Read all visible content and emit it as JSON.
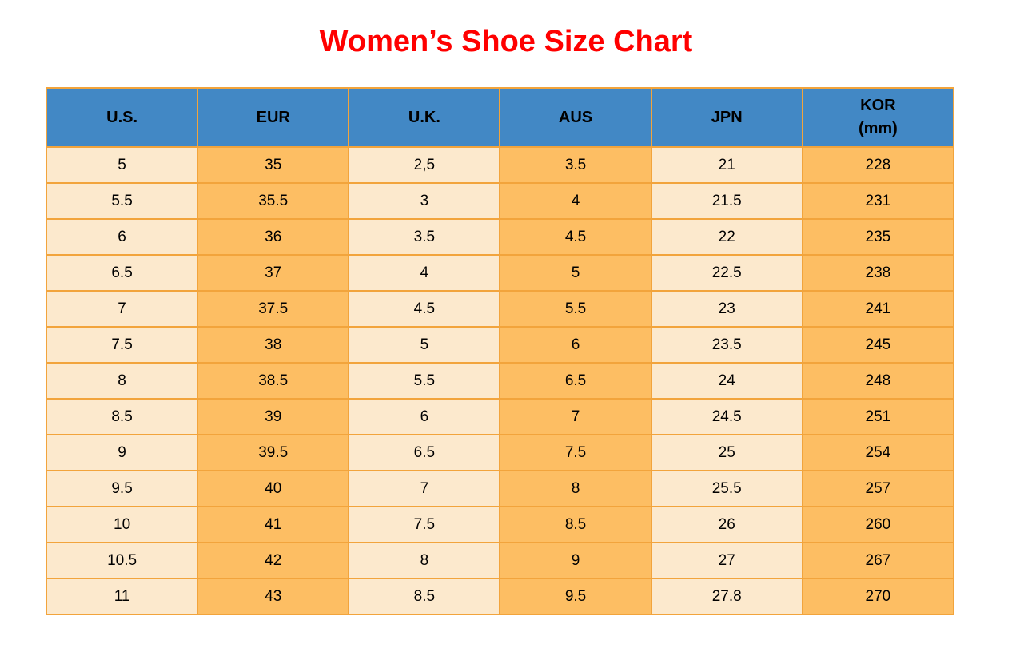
{
  "title": "Women’s Shoe Size Chart",
  "colors": {
    "title_red": "#FF0000",
    "header_blue": "#4288C5",
    "cell_cream": "#FCE9CD",
    "cell_orange": "#FDBE63",
    "border_orange": "#F2A43C",
    "text_black": "#000000"
  },
  "chart_data": {
    "type": "table",
    "title": "Women’s Shoe Size Chart",
    "columns": [
      "U.S.",
      "EUR",
      "U.K.",
      "AUS",
      "JPN",
      "KOR (mm)"
    ],
    "header_cells": [
      {
        "line1": "U.S.",
        "line2": ""
      },
      {
        "line1": "EUR",
        "line2": ""
      },
      {
        "line1": "U.K.",
        "line2": ""
      },
      {
        "line1": "AUS",
        "line2": ""
      },
      {
        "line1": "JPN",
        "line2": ""
      },
      {
        "line1": "KOR",
        "line2": "(mm)"
      }
    ],
    "column_fills": [
      "cream",
      "orange",
      "cream",
      "orange",
      "cream",
      "orange"
    ],
    "rows": [
      [
        "5",
        "35",
        "2,5",
        "3.5",
        "21",
        "228"
      ],
      [
        "5.5",
        "35.5",
        "3",
        "4",
        "21.5",
        "231"
      ],
      [
        "6",
        "36",
        "3.5",
        "4.5",
        "22",
        "235"
      ],
      [
        "6.5",
        "37",
        "4",
        "5",
        "22.5",
        "238"
      ],
      [
        "7",
        "37.5",
        "4.5",
        "5.5",
        "23",
        "241"
      ],
      [
        "7.5",
        "38",
        "5",
        "6",
        "23.5",
        "245"
      ],
      [
        "8",
        "38.5",
        "5.5",
        "6.5",
        "24",
        "248"
      ],
      [
        "8.5",
        "39",
        "6",
        "7",
        "24.5",
        "251"
      ],
      [
        "9",
        "39.5",
        "6.5",
        "7.5",
        "25",
        "254"
      ],
      [
        "9.5",
        "40",
        "7",
        "8",
        "25.5",
        "257"
      ],
      [
        "10",
        "41",
        "7.5",
        "8.5",
        "26",
        "260"
      ],
      [
        "10.5",
        "42",
        "8",
        "9",
        "27",
        "267"
      ],
      [
        "11",
        "43",
        "8.5",
        "9.5",
        "27.8",
        "270"
      ]
    ]
  }
}
